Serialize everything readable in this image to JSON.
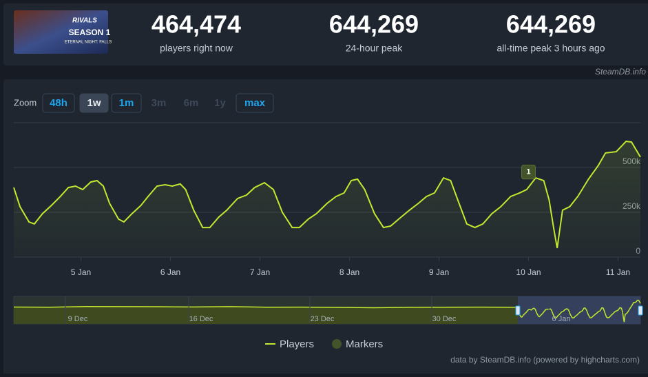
{
  "header": {
    "thumbnail": {
      "logo": "RIVALS",
      "title": "SEASON 1",
      "subtitle": "ETERNAL NIGHT: FALLS"
    },
    "stats": [
      {
        "value": "464,474",
        "label": "players right now"
      },
      {
        "value": "644,269",
        "label": "24-hour peak"
      },
      {
        "value": "644,269",
        "label": "all-time peak 3 hours ago"
      }
    ],
    "source": "SteamDB.info"
  },
  "zoom": {
    "label": "Zoom",
    "buttons": [
      "48h",
      "1w",
      "1m",
      "3m",
      "6m",
      "1y",
      "max"
    ]
  },
  "chart_data": {
    "type": "line",
    "xlim": [
      4.25,
      11.25
    ],
    "xticks": [
      {
        "value": 5,
        "label": "5 Jan"
      },
      {
        "value": 6,
        "label": "6 Jan"
      },
      {
        "value": 7,
        "label": "7 Jan"
      },
      {
        "value": 8,
        "label": "8 Jan"
      },
      {
        "value": 9,
        "label": "9 Jan"
      },
      {
        "value": 10,
        "label": "10 Jan"
      },
      {
        "value": 11,
        "label": "11 Jan"
      }
    ],
    "ylim": [
      0,
      750000
    ],
    "yticks": [
      0,
      {
        "value": 250000,
        "label": "250k"
      },
      {
        "value": 500000,
        "label": "500k"
      }
    ],
    "grid": true,
    "series": [
      {
        "name": "Players",
        "color": "#c2e82f",
        "x": [
          4.25,
          4.32,
          4.42,
          4.48,
          4.57,
          4.67,
          4.77,
          4.86,
          4.94,
          5.02,
          5.11,
          5.18,
          5.25,
          5.32,
          5.42,
          5.48,
          5.57,
          5.67,
          5.75,
          5.85,
          5.94,
          6.02,
          6.11,
          6.17,
          6.26,
          6.36,
          6.44,
          6.54,
          6.63,
          6.75,
          6.85,
          6.94,
          7.05,
          7.15,
          7.25,
          7.36,
          7.44,
          7.54,
          7.63,
          7.75,
          7.85,
          7.94,
          8.02,
          8.09,
          8.17,
          8.28,
          8.38,
          8.46,
          8.55,
          8.67,
          8.77,
          8.86,
          8.95,
          9.05,
          9.13,
          9.21,
          9.31,
          9.4,
          9.49,
          9.59,
          9.69,
          9.8,
          9.9,
          9.98,
          10.08,
          10.17,
          10.23,
          10.28,
          10.32,
          10.38,
          10.46,
          10.55,
          10.67,
          10.78,
          10.86,
          10.98,
          11.09,
          11.15,
          11.25
        ],
        "values": [
          388000,
          281000,
          196000,
          185000,
          242000,
          288000,
          338000,
          388000,
          396000,
          377000,
          419000,
          427000,
          396000,
          300000,
          212000,
          196000,
          242000,
          288000,
          338000,
          396000,
          404000,
          396000,
          408000,
          377000,
          262000,
          165000,
          165000,
          223000,
          262000,
          327000,
          346000,
          388000,
          415000,
          377000,
          250000,
          165000,
          165000,
          212000,
          242000,
          300000,
          338000,
          358000,
          427000,
          435000,
          377000,
          242000,
          165000,
          173000,
          212000,
          262000,
          300000,
          338000,
          358000,
          442000,
          427000,
          319000,
          185000,
          165000,
          185000,
          242000,
          281000,
          338000,
          358000,
          377000,
          442000,
          427000,
          319000,
          165000,
          50000,
          262000,
          281000,
          338000,
          435000,
          512000,
          581000,
          588000,
          646000,
          642000,
          558000
        ]
      }
    ],
    "markers": {
      "name": "Markers",
      "color": "#43542a",
      "items": [
        {
          "x": 10.0,
          "text": "1"
        }
      ]
    },
    "legend": "bottom",
    "credits": "data by SteamDB.info (powered by highcharts.com)",
    "navigator": {
      "labels": [
        "9 Dec",
        "16 Dec",
        "23 Dec",
        "30 Dec",
        "6 Jan"
      ],
      "values": [
        460000,
        455000,
        475000,
        470000,
        468000,
        462000,
        470000,
        455000,
        458000,
        450000,
        440000,
        452000,
        455000,
        458000,
        452000
      ]
    }
  }
}
